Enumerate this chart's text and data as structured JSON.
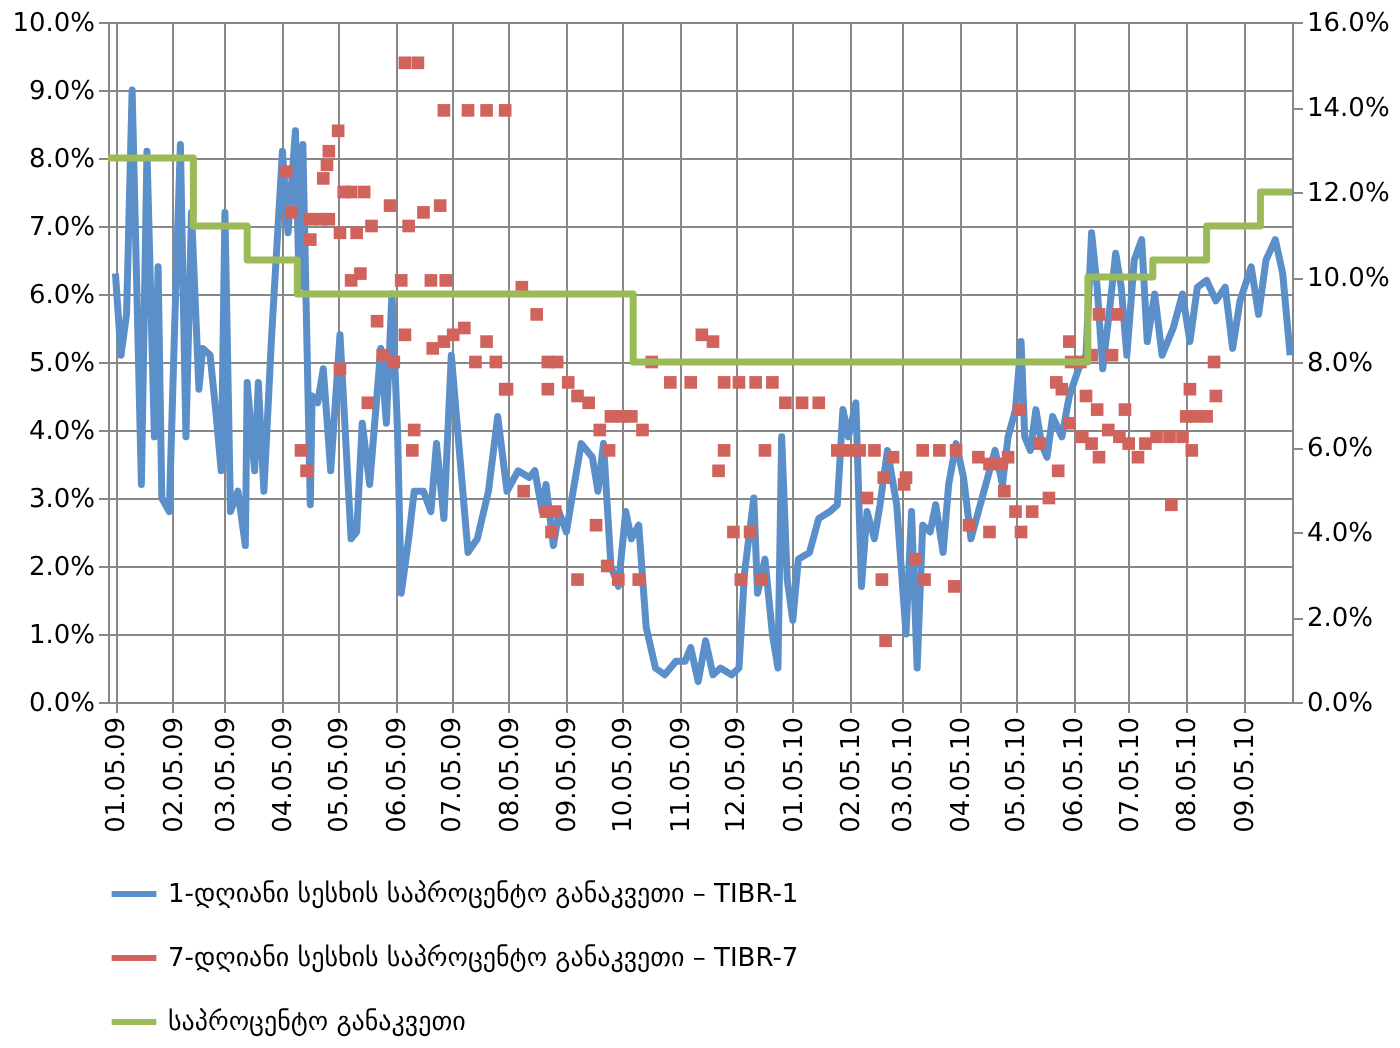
{
  "chart_data": {
    "type": "line",
    "xlim": [
      "2009-01-01",
      "2010-10-01"
    ],
    "xticks": [
      {
        "value": "2009-01-05",
        "label": "01.05.09"
      },
      {
        "value": "2009-02-05",
        "label": "02.05.09"
      },
      {
        "value": "2009-03-05",
        "label": "03.05.09"
      },
      {
        "value": "2009-04-05",
        "label": "04.05.09"
      },
      {
        "value": "2009-05-05",
        "label": "05.05.09"
      },
      {
        "value": "2009-06-05",
        "label": "06.05.09"
      },
      {
        "value": "2009-07-05",
        "label": "07.05.09"
      },
      {
        "value": "2009-08-05",
        "label": "08.05.09"
      },
      {
        "value": "2009-09-05",
        "label": "09.05.09"
      },
      {
        "value": "2009-10-05",
        "label": "10.05.09"
      },
      {
        "value": "2009-11-05",
        "label": "11.05.09"
      },
      {
        "value": "2009-12-05",
        "label": "12.05.09"
      },
      {
        "value": "2010-01-05",
        "label": "01.05.10"
      },
      {
        "value": "2010-02-05",
        "label": "02.05.10"
      },
      {
        "value": "2010-03-05",
        "label": "03.05.10"
      },
      {
        "value": "2010-04-05",
        "label": "04.05.10"
      },
      {
        "value": "2010-05-05",
        "label": "05.05.10"
      },
      {
        "value": "2010-06-05",
        "label": "06.05.10"
      },
      {
        "value": "2010-07-05",
        "label": "07.05.10"
      },
      {
        "value": "2010-08-05",
        "label": "08.05.10"
      },
      {
        "value": "2010-09-05",
        "label": "09.05.10"
      }
    ],
    "ylim": [
      0,
      10
    ],
    "yticks": [
      {
        "value": 0,
        "label": "0.0%"
      },
      {
        "value": 1,
        "label": "1.0%"
      },
      {
        "value": 2,
        "label": "2.0%"
      },
      {
        "value": 3,
        "label": "3.0%"
      },
      {
        "value": 4,
        "label": "4.0%"
      },
      {
        "value": 5,
        "label": "5.0%"
      },
      {
        "value": 6,
        "label": "6.0%"
      },
      {
        "value": 7,
        "label": "7.0%"
      },
      {
        "value": 8,
        "label": "8.0%"
      },
      {
        "value": 9,
        "label": "9.0%"
      },
      {
        "value": 10,
        "label": "10.0%"
      }
    ],
    "y2lim": [
      0,
      16
    ],
    "y2ticks": [
      {
        "value": 0,
        "label": "0.0%"
      },
      {
        "value": 2,
        "label": "2.0%"
      },
      {
        "value": 4,
        "label": "4.0%"
      },
      {
        "value": 6,
        "label": "6.0%"
      },
      {
        "value": 8,
        "label": "8.0%"
      },
      {
        "value": 10,
        "label": "10.0%"
      },
      {
        "value": 12,
        "label": "12.0%"
      },
      {
        "value": 14,
        "label": "14.0%"
      },
      {
        "value": 16,
        "label": "16.0%"
      }
    ],
    "grid": true,
    "legend": "bottom",
    "series": [
      {
        "name": "1-დღიანი სესხის საპროცენტო განაკვეთი – TIBR-1",
        "color": "#5b8fc9",
        "marker": "none",
        "x": [
          "2009-01-05",
          "2009-01-08",
          "2009-01-11",
          "2009-01-14",
          "2009-01-19",
          "2009-01-22",
          "2009-01-26",
          "2009-01-28",
          "2009-01-30",
          "2009-02-03",
          "2009-02-06",
          "2009-02-09",
          "2009-02-12",
          "2009-02-15",
          "2009-02-19",
          "2009-02-21",
          "2009-02-25",
          "2009-02-28",
          "2009-03-03",
          "2009-03-05",
          "2009-03-08",
          "2009-03-12",
          "2009-03-16",
          "2009-03-17",
          "2009-03-21",
          "2009-03-23",
          "2009-03-26",
          "2009-03-30",
          "2009-04-05",
          "2009-04-08",
          "2009-04-12",
          "2009-04-14",
          "2009-04-16",
          "2009-04-20",
          "2009-04-21",
          "2009-04-24",
          "2009-04-27",
          "2009-05-01",
          "2009-05-06",
          "2009-05-12",
          "2009-05-15",
          "2009-05-18",
          "2009-05-22",
          "2009-05-28",
          "2009-05-31",
          "2009-06-03",
          "2009-06-06",
          "2009-06-08",
          "2009-06-12",
          "2009-06-15",
          "2009-06-20",
          "2009-06-24",
          "2009-06-27",
          "2009-07-01",
          "2009-07-05",
          "2009-07-09",
          "2009-07-14",
          "2009-07-19",
          "2009-07-25",
          "2009-07-30",
          "2009-08-04",
          "2009-08-10",
          "2009-08-16",
          "2009-08-19",
          "2009-08-23",
          "2009-08-25",
          "2009-08-29",
          "2009-09-01",
          "2009-09-05",
          "2009-09-08",
          "2009-09-13",
          "2009-09-19",
          "2009-09-22",
          "2009-09-25",
          "2009-09-29",
          "2009-10-03",
          "2009-10-07",
          "2009-10-10",
          "2009-10-14",
          "2009-10-18",
          "2009-10-23",
          "2009-10-28",
          "2009-11-03",
          "2009-11-08",
          "2009-11-11",
          "2009-11-15",
          "2009-11-19",
          "2009-11-23",
          "2009-11-27",
          "2009-12-03",
          "2009-12-07",
          "2009-12-10",
          "2009-12-15",
          "2009-12-17",
          "2009-12-21",
          "2009-12-25",
          "2009-12-28",
          "2009-12-30",
          "2010-01-02",
          "2010-01-05",
          "2010-01-08",
          "2010-01-14",
          "2010-01-19",
          "2010-01-25",
          "2010-01-29",
          "2010-02-01",
          "2010-02-04",
          "2010-02-08",
          "2010-02-11",
          "2010-02-14",
          "2010-02-18",
          "2010-02-21",
          "2010-02-25",
          "2010-03-02",
          "2010-03-07",
          "2010-03-10",
          "2010-03-13",
          "2010-03-16",
          "2010-03-20",
          "2010-03-23",
          "2010-03-27",
          "2010-03-30",
          "2010-04-03",
          "2010-04-07",
          "2010-04-11",
          "2010-04-15",
          "2010-04-20",
          "2010-04-24",
          "2010-04-28",
          "2010-05-01",
          "2010-05-05",
          "2010-05-08",
          "2010-05-10",
          "2010-05-13",
          "2010-05-16",
          "2010-05-19",
          "2010-05-22",
          "2010-05-25",
          "2010-05-30",
          "2010-06-03",
          "2010-06-08",
          "2010-06-12",
          "2010-06-15",
          "2010-06-18",
          "2010-06-21",
          "2010-06-24",
          "2010-06-28",
          "2010-07-01",
          "2010-07-04",
          "2010-07-08",
          "2010-07-12",
          "2010-07-15",
          "2010-07-19",
          "2010-07-23",
          "2010-07-29",
          "2010-08-03",
          "2010-08-07",
          "2010-08-11",
          "2010-08-16",
          "2010-08-21",
          "2010-08-26",
          "2010-08-30",
          "2010-09-03",
          "2010-09-09",
          "2010-09-13",
          "2010-09-17",
          "2010-09-22",
          "2010-09-26",
          "2010-09-30"
        ],
        "values": [
          6.3,
          5.1,
          5.7,
          9.0,
          3.2,
          8.1,
          3.9,
          6.4,
          3.0,
          2.8,
          5.6,
          8.2,
          3.9,
          7.2,
          4.6,
          5.2,
          5.1,
          4.3,
          3.4,
          7.2,
          2.8,
          3.1,
          2.3,
          4.7,
          3.4,
          4.7,
          3.1,
          5.3,
          8.1,
          6.9,
          8.4,
          6.1,
          8.2,
          2.9,
          4.5,
          4.4,
          4.9,
          3.4,
          5.4,
          2.4,
          2.5,
          4.1,
          3.2,
          5.2,
          4.1,
          6.0,
          4.0,
          1.6,
          2.4,
          3.1,
          3.1,
          2.8,
          3.8,
          2.7,
          5.1,
          3.8,
          2.2,
          2.4,
          3.1,
          4.2,
          3.1,
          3.4,
          3.3,
          3.4,
          2.8,
          3.2,
          2.3,
          2.8,
          2.5,
          3.0,
          3.8,
          3.6,
          3.1,
          3.8,
          2.0,
          1.7,
          2.8,
          2.4,
          2.6,
          1.1,
          0.5,
          0.4,
          0.6,
          0.6,
          0.8,
          0.3,
          0.9,
          0.4,
          0.5,
          0.4,
          0.5,
          1.9,
          3.0,
          1.6,
          2.1,
          1.0,
          0.5,
          3.9,
          1.8,
          1.2,
          2.1,
          2.2,
          2.7,
          2.8,
          2.9,
          4.3,
          3.9,
          4.4,
          1.7,
          2.8,
          2.4,
          2.9,
          3.7,
          2.9,
          1.0,
          2.8,
          0.5,
          2.6,
          2.5,
          2.9,
          2.2,
          3.2,
          3.8,
          3.3,
          2.4,
          2.8,
          3.3,
          3.7,
          3.2,
          3.9,
          4.3,
          5.3,
          3.9,
          3.7,
          4.3,
          3.8,
          3.6,
          4.2,
          3.9,
          4.5,
          4.9,
          5.1,
          6.9,
          6.1,
          4.9,
          5.6,
          6.6,
          6.1,
          5.1,
          6.5,
          6.8,
          5.3,
          6.0,
          5.1,
          5.5,
          6.0,
          5.3,
          6.1,
          6.2,
          5.9,
          6.1,
          5.2,
          5.9,
          6.4,
          5.7,
          6.5,
          6.8,
          6.3,
          5.1
        ]
      },
      {
        "name": "7-დღიანი სესხის საპროცენტო განაკვეთი – TIBR-7",
        "type": "scatter",
        "color": "#d0635c",
        "marker": "square",
        "x": [
          "2009-04-07",
          "2009-04-10",
          "2009-04-20",
          "2009-04-20",
          "2009-04-26",
          "2009-04-30",
          "2009-04-27",
          "2009-04-29",
          "2009-04-30",
          "2009-05-05",
          "2009-05-08",
          "2009-05-12",
          "2009-05-19",
          "2009-05-06",
          "2009-05-15",
          "2009-05-23",
          "2009-05-12",
          "2009-05-17",
          "2009-06-02",
          "2009-06-12",
          "2009-06-20",
          "2009-06-29",
          "2009-06-10",
          "2009-06-17",
          "2009-07-01",
          "2009-07-14",
          "2009-07-24",
          "2009-08-03",
          "2009-06-08",
          "2009-06-24",
          "2009-07-02",
          "2009-05-26",
          "2009-06-10",
          "2009-05-29",
          "2009-06-04",
          "2009-06-25",
          "2009-07-01",
          "2009-07-06",
          "2009-07-12",
          "2009-07-24",
          "2009-07-18",
          "2009-07-29",
          "2009-08-04",
          "2009-05-06",
          "2009-05-21",
          "2009-06-15",
          "2009-06-14",
          "2009-04-15",
          "2009-04-18",
          "2009-08-12",
          "2009-08-20",
          "2009-08-03",
          "2009-08-26",
          "2009-08-31",
          "2009-08-26",
          "2009-09-06",
          "2009-09-11",
          "2009-09-17",
          "2009-09-23",
          "2009-09-29",
          "2009-10-05",
          "2009-10-10",
          "2009-10-16",
          "2009-09-28",
          "2009-08-13",
          "2009-08-25",
          "2009-08-30",
          "2009-08-28",
          "2009-09-21",
          "2009-09-11",
          "2009-09-27",
          "2009-10-03",
          "2009-10-14",
          "2009-10-21",
          "2009-10-31",
          "2009-11-11",
          "2009-11-17",
          "2009-11-23",
          "2009-11-29",
          "2009-12-07",
          "2009-12-16",
          "2009-12-25",
          "2010-01-01",
          "2010-01-10",
          "2010-01-19",
          "2009-11-29",
          "2009-11-26",
          "2009-12-21",
          "2009-12-04",
          "2009-12-13",
          "2009-12-08",
          "2009-12-19",
          "2010-01-29",
          "2010-02-04",
          "2010-02-10",
          "2010-02-18",
          "2010-02-28",
          "2010-02-14",
          "2010-02-23",
          "2010-03-07",
          "2010-02-22",
          "2010-02-24",
          "2010-03-06",
          "2010-03-12",
          "2010-03-17",
          "2010-03-16",
          "2010-03-25",
          "2010-04-03",
          "2010-04-02",
          "2010-04-15",
          "2010-04-21",
          "2010-04-27",
          "2010-05-01",
          "2010-04-10",
          "2010-04-21",
          "2010-04-29",
          "2010-05-05",
          "2010-05-08",
          "2010-05-14",
          "2010-05-07",
          "2010-05-18",
          "2010-05-23",
          "2010-05-28",
          "2010-05-27",
          "2010-05-30",
          "2010-06-03",
          "2010-06-04",
          "2010-06-09",
          "2010-06-03",
          "2010-06-10",
          "2010-06-12",
          "2010-06-18",
          "2010-06-15",
          "2010-06-19",
          "2010-06-19",
          "2010-06-29",
          "2010-06-15",
          "2010-06-26",
          "2010-06-24",
          "2010-06-30",
          "2010-07-03",
          "2010-07-05",
          "2010-07-10",
          "2010-07-14",
          "2010-07-20",
          "2010-07-27",
          "2010-08-03",
          "2010-08-08",
          "2010-07-28",
          "2010-08-05",
          "2010-08-10",
          "2010-08-16",
          "2010-08-07",
          "2010-08-21",
          "2010-08-20"
        ],
        "values": [
          7.8,
          7.2,
          7.1,
          6.8,
          7.1,
          7.1,
          7.7,
          7.9,
          8.1,
          8.4,
          7.5,
          7.5,
          7.5,
          6.9,
          6.9,
          7.0,
          6.2,
          6.3,
          7.3,
          7.0,
          7.2,
          7.3,
          9.4,
          9.4,
          8.7,
          8.7,
          8.7,
          8.7,
          6.2,
          6.2,
          6.2,
          5.6,
          5.4,
          5.1,
          5.0,
          5.2,
          5.3,
          5.4,
          5.5,
          5.3,
          5.0,
          5.0,
          4.6,
          4.9,
          4.4,
          4.0,
          3.7,
          3.7,
          3.4,
          6.1,
          5.7,
          4.6,
          5.0,
          5.0,
          4.6,
          4.7,
          4.5,
          4.4,
          4.0,
          4.2,
          4.2,
          4.2,
          4.0,
          3.7,
          3.1,
          2.8,
          2.8,
          2.5,
          2.6,
          1.8,
          2.0,
          1.8,
          1.8,
          5.0,
          4.7,
          4.7,
          5.4,
          5.3,
          4.7,
          4.7,
          4.7,
          4.7,
          4.4,
          4.4,
          4.4,
          3.7,
          3.4,
          3.7,
          2.5,
          2.5,
          1.8,
          1.8,
          3.7,
          3.7,
          3.7,
          3.7,
          3.6,
          3.0,
          3.3,
          3.3,
          1.8,
          0.9,
          3.2,
          2.1,
          1.8,
          3.7,
          3.7,
          3.7,
          1.7,
          3.6,
          3.5,
          3.5,
          3.6,
          2.6,
          2.5,
          3.1,
          2.8,
          2.5,
          2.8,
          4.3,
          3.8,
          3.0,
          3.4,
          4.7,
          4.6,
          5.3,
          5.0,
          5.0,
          4.1,
          3.9,
          4.5,
          4.3,
          3.8,
          3.6,
          5.7,
          5.7,
          5.1,
          5.1,
          4.0,
          3.9,
          4.3,
          3.8,
          3.6,
          3.8,
          3.9,
          3.9,
          3.9,
          3.7,
          2.9,
          4.2,
          4.2,
          4.2,
          4.6,
          4.5,
          5.0
        ]
      },
      {
        "name": "საპროცენტო განაკვეთი",
        "type": "step",
        "color": "#9bbb59",
        "marker": "none",
        "x": [
          "2009-01-01",
          "2009-02-16",
          "2009-03-17",
          "2009-04-13",
          "2009-10-11",
          "2010-06-13",
          "2010-07-18",
          "2010-08-16",
          "2010-09-14",
          "2010-10-01"
        ],
        "values": [
          8,
          7,
          6.5,
          6,
          5,
          6.25,
          6.5,
          7,
          7.5,
          7.5
        ]
      }
    ]
  }
}
